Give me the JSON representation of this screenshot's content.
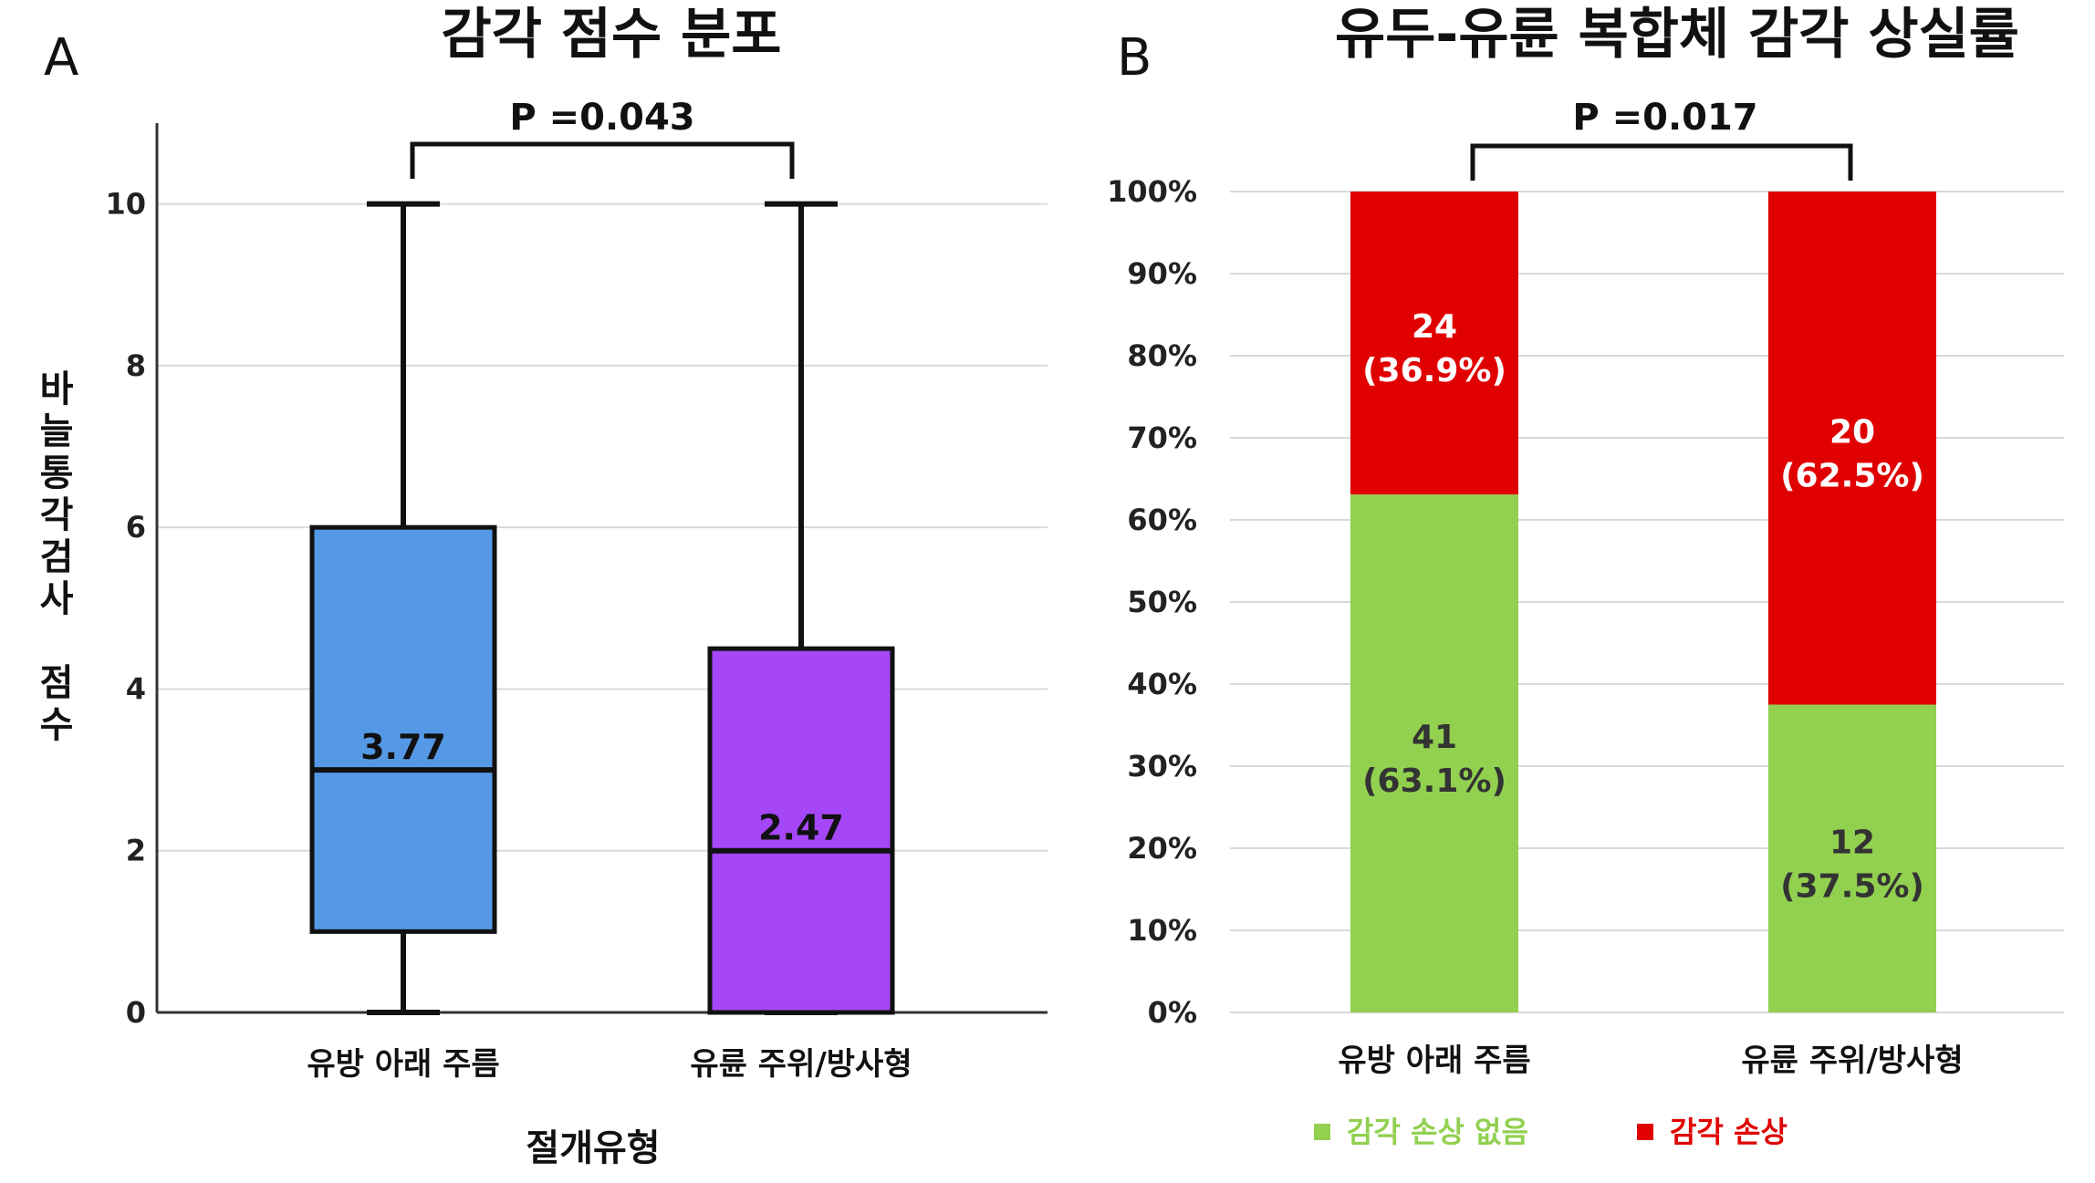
{
  "panel_a": {
    "letter": "A",
    "title": "감각 점수 분포",
    "p_value": "P =0.043",
    "ylabel": "바늘통각검사 점수",
    "xlabel": "절개유형",
    "y_ticks": [
      "0",
      "2",
      "4",
      "6",
      "8",
      "10"
    ]
  },
  "panel_b": {
    "letter": "B",
    "title": "유두-유륜 복합체 감각 상실률",
    "p_value": "P =0.017",
    "y_ticks": [
      "0%",
      "10%",
      "20%",
      "30%",
      "40%",
      "50%",
      "60%",
      "70%",
      "80%",
      "90%",
      "100%"
    ]
  },
  "colors": {
    "box1": "#5599e6",
    "box2": "#a547f7",
    "no_loss": "#92d050",
    "loss": "#e00000",
    "grid": "#d9d9d9"
  },
  "chart_data": [
    {
      "type": "box",
      "title": "감각 점수 분포",
      "xlabel": "절개유형",
      "ylabel": "바늘통각검사 점수",
      "ylim": [
        0,
        11
      ],
      "categories": [
        "유방 아래 주름",
        "유륜 주위/방사형"
      ],
      "boxes": [
        {
          "min": 0,
          "q1": 1,
          "median": 3,
          "q3": 6,
          "max": 10,
          "mean_label": "3.77"
        },
        {
          "min": 0,
          "q1": 0,
          "median": 2,
          "q3": 4.5,
          "max": 10,
          "mean_label": "2.47"
        }
      ],
      "annotation": "P =0.043"
    },
    {
      "type": "bar",
      "stacked": true,
      "percent": true,
      "title": "유두-유륜 복합체 감각 상실률",
      "ylim": [
        0,
        100
      ],
      "categories": [
        "유방 아래 주름",
        "유륜 주위/방사형"
      ],
      "series": [
        {
          "name": "감각 손상 없음",
          "values": [
            63.1,
            37.5
          ],
          "counts": [
            "41",
            "12"
          ],
          "labels": [
            "(63.1%)",
            "(37.5%)"
          ]
        },
        {
          "name": "감각 손상",
          "values": [
            36.9,
            62.5
          ],
          "counts": [
            "24",
            "20"
          ],
          "labels": [
            "(36.9%)",
            "(62.5%)"
          ]
        }
      ],
      "legend": "bottom",
      "annotation": "P =0.017"
    }
  ]
}
